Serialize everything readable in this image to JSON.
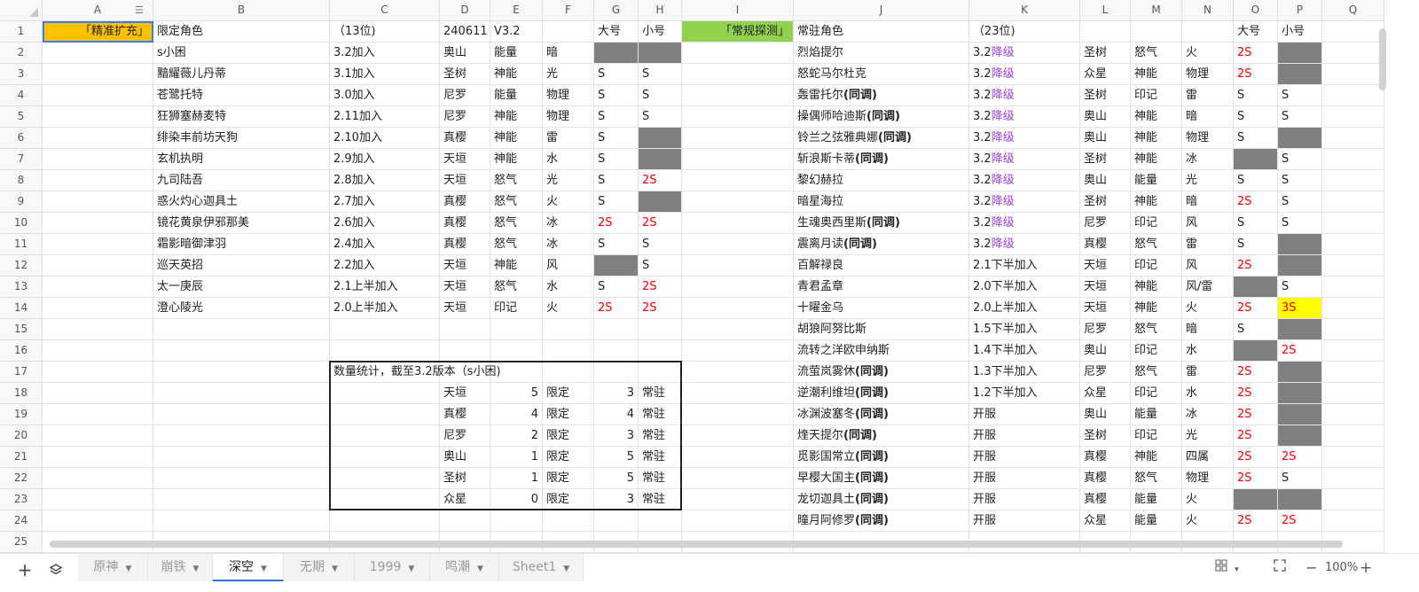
{
  "columns": [
    "A",
    "B",
    "C",
    "D",
    "E",
    "F",
    "G",
    "H",
    "I",
    "J",
    "K",
    "L",
    "M",
    "N",
    "O",
    "P",
    "Q"
  ],
  "row_count": 25,
  "selected_cell": "A1",
  "colors": {
    "orange": "#ffc000",
    "green": "#92d050",
    "gray": "#808080",
    "red": "#ff0000",
    "purple": "#a040f0",
    "yellow": "#ffff00",
    "accent": "#2f6ee8"
  },
  "cells": {
    "A1": "「精准扩充」",
    "B1": "限定角色",
    "C1": "（13位)",
    "D1": "240611",
    "E1": "V3.2",
    "G1": "大号",
    "H1": "小号",
    "I1": "「常规探测」",
    "J1": "常驻角色",
    "K1": "（23位)",
    "O1": "大号",
    "P1": "小号",
    "B2": "s小困",
    "C2": "3.2加入",
    "D2": "奥山",
    "E2": "能量",
    "F2": "暗",
    "B3": "黯耀薇儿丹蒂",
    "C3": "3.1加入",
    "D3": "圣树",
    "E3": "神能",
    "F3": "光",
    "G3": "S",
    "H3": "S",
    "B4": "苍鹭托特",
    "C4": "3.0加入",
    "D4": "尼罗",
    "E4": "能量",
    "F4": "物理",
    "G4": "S",
    "H4": "S",
    "B5": "狂狮塞赫麦特",
    "C5": "2.11加入",
    "D5": "尼罗",
    "E5": "神能",
    "F5": "物理",
    "G5": "S",
    "H5": "S",
    "B6": "绯染丰前坊天狗",
    "C6": "2.10加入",
    "D6": "真樱",
    "E6": "神能",
    "F6": "雷",
    "G6": "S",
    "B7": "玄机执明",
    "C7": "2.9加入",
    "D7": "天垣",
    "E7": "神能",
    "F7": "水",
    "G7": "S",
    "B8": "九司陆吾",
    "C8": "2.8加入",
    "D8": "天垣",
    "E8": "怒气",
    "F8": "光",
    "G8": "S",
    "H8": "2S",
    "B9": "惑火灼心迦具土",
    "C9": "2.7加入",
    "D9": "真樱",
    "E9": "怒气",
    "F9": "火",
    "G9": "S",
    "B10": "镜花黄泉伊邪那美",
    "C10": "2.6加入",
    "D10": "真樱",
    "E10": "怒气",
    "F10": "冰",
    "G10": "2S",
    "H10": "2S",
    "B11": "霜影暗御津羽",
    "C11": "2.4加入",
    "D11": "真樱",
    "E11": "怒气",
    "F11": "冰",
    "G11": "S",
    "H11": "S",
    "B12": "巡天英招",
    "C12": "2.2加入",
    "D12": "天垣",
    "E12": "神能",
    "F12": "风",
    "H12": "S",
    "B13": "太一庚辰",
    "C13": "2.1上半加入",
    "D13": "天垣",
    "E13": "怒气",
    "F13": "水",
    "G13": "S",
    "H13": "2S",
    "B14": "澄心陵光",
    "C14": "2.0上半加入",
    "D14": "天垣",
    "E14": "印记",
    "F14": "火",
    "G14": "2S",
    "H14": "2S",
    "J2": "烈焰提尔",
    "K2": [
      "3.2",
      "降级"
    ],
    "L2": "圣树",
    "M2": "怒气",
    "N2": "火",
    "O2": "2S",
    "J3": "怒蛇马尔杜克",
    "K3": [
      "3.2",
      "降级"
    ],
    "L3": "众星",
    "M3": "神能",
    "N3": "物理",
    "O3": "2S",
    "J4": [
      "轰雷托尔",
      "(同调)"
    ],
    "K4": [
      "3.2",
      "降级"
    ],
    "L4": "圣树",
    "M4": "印记",
    "N4": "雷",
    "O4": "S",
    "P4": "S",
    "J5": [
      "操偶师哈迪斯",
      "(同调)"
    ],
    "K5": [
      "3.2",
      "降级"
    ],
    "L5": "奥山",
    "M5": "神能",
    "N5": "暗",
    "O5": "S",
    "P5": "S",
    "J6": [
      "铃兰之弦雅典娜",
      "(同调)"
    ],
    "K6": [
      "3.2",
      "降级"
    ],
    "L6": "奥山",
    "M6": "神能",
    "N6": "物理",
    "O6": "S",
    "J7": [
      "斩浪斯卡蒂",
      "(同调)"
    ],
    "K7": [
      "3.2",
      "降级"
    ],
    "L7": "圣树",
    "M7": "神能",
    "N7": "冰",
    "P7": "S",
    "J8": "黎幻赫拉",
    "K8": [
      "3.2",
      "降级"
    ],
    "L8": "奥山",
    "M8": "能量",
    "N8": "光",
    "O8": "S",
    "P8": "S",
    "J9": "暗星海拉",
    "K9": [
      "3.2",
      "降级"
    ],
    "L9": "圣树",
    "M9": "神能",
    "N9": "暗",
    "O9": "2S",
    "P9": "S",
    "J10": [
      "生魂奥西里斯",
      "(同调)"
    ],
    "K10": [
      "3.2",
      "降级"
    ],
    "L10": "尼罗",
    "M10": "印记",
    "N10": "风",
    "O10": "S",
    "P10": "S",
    "J11": [
      "震离月读",
      "(同调)"
    ],
    "K11": [
      "3.2",
      "降级"
    ],
    "L11": "真樱",
    "M11": "怒气",
    "N11": "雷",
    "O11": "S",
    "J12": "百解禄良",
    "K12": "2.1下半加入",
    "L12": "天垣",
    "M12": "印记",
    "N12": "风",
    "O12": "2S",
    "J13": "青君孟章",
    "K13": "2.0下半加入",
    "L13": "天垣",
    "M13": "神能",
    "N13": "风/雷",
    "P13": "S",
    "J14": "十曜金乌",
    "K14": "2.0上半加入",
    "L14": "天垣",
    "M14": "神能",
    "N14": "火",
    "O14": "2S",
    "P14": "3S",
    "J15": "胡狼阿努比斯",
    "K15": "1.5下半加入",
    "L15": "尼罗",
    "M15": "怒气",
    "N15": "暗",
    "O15": "S",
    "J16": "流转之洋欧申纳斯",
    "K16": "1.4下半加入",
    "L16": "奥山",
    "M16": "印记",
    "N16": "水",
    "P16": "2S",
    "J17": [
      "流萤岚雾休",
      "(同调)"
    ],
    "K17": "1.3下半加入",
    "L17": "尼罗",
    "M17": "怒气",
    "N17": "雷",
    "O17": "2S",
    "J18": [
      "逆潮利维坦",
      "(同调)"
    ],
    "K18": "1.2下半加入",
    "L18": "众星",
    "M18": "印记",
    "N18": "水",
    "O18": "2S",
    "J19": [
      "冰渊波塞冬",
      "(同调)"
    ],
    "K19": "开服",
    "L19": "奥山",
    "M19": "能量",
    "N19": "冰",
    "O19": "2S",
    "J20": [
      "煃天提尔",
      "(同调)"
    ],
    "K20": "开服",
    "L20": "圣树",
    "M20": "印记",
    "N20": "光",
    "O20": "2S",
    "J21": [
      "觅影国常立",
      "(同调)"
    ],
    "K21": "开服",
    "L21": "真樱",
    "M21": "神能",
    "N21": "四属",
    "O21": "2S",
    "P21": "2S",
    "J22": [
      "早樱大国主",
      "(同调)"
    ],
    "K22": "开服",
    "L22": "真樱",
    "M22": "怒气",
    "N22": "物理",
    "O22": "2S",
    "P22": "S",
    "J23": [
      "龙切迦具土",
      "(同调)"
    ],
    "K23": "开服",
    "L23": "真樱",
    "M23": "能量",
    "N23": "火",
    "J24": [
      "曈月阿修罗",
      "(同调)"
    ],
    "K24": "开服",
    "L24": "众星",
    "M24": "能量",
    "N24": "火",
    "O24": "2S",
    "P24": "2S",
    "C17": "数量统计，截至3.2版本（s小困)",
    "D18": "天垣",
    "E18": "5",
    "F18": "限定",
    "G18": "3",
    "H18": "常驻",
    "D19": "真樱",
    "E19": "4",
    "F19": "限定",
    "G19": "4",
    "H19": "常驻",
    "D20": "尼罗",
    "E20": "2",
    "F20": "限定",
    "G20": "3",
    "H20": "常驻",
    "D21": "奥山",
    "E21": "1",
    "F21": "限定",
    "G21": "5",
    "H21": "常驻",
    "D22": "圣树",
    "E22": "1",
    "F22": "限定",
    "G22": "5",
    "H22": "常驻",
    "D23": "众星",
    "E23": "0",
    "F23": "限定",
    "G23": "3",
    "H23": "常驻"
  },
  "cell_fills": {
    "A1": "orange",
    "I1": "green",
    "G2": "gray",
    "H2": "gray",
    "H6": "gray",
    "H7": "gray",
    "H9": "gray",
    "G12": "gray",
    "P2": "gray",
    "P3": "gray",
    "P6": "gray",
    "O7": "gray",
    "P11": "gray",
    "P12": "gray",
    "O13": "gray",
    "P14": "yellow",
    "P15": "gray",
    "O16": "gray",
    "P17": "gray",
    "P18": "gray",
    "P19": "gray",
    "P20": "gray",
    "O23": "gray",
    "P23": "gray"
  },
  "stats_box_range": "C17:H23",
  "sheet_tabs": [
    {
      "label": "原神",
      "active": false
    },
    {
      "label": "崩铁",
      "active": false
    },
    {
      "label": "深空",
      "active": true
    },
    {
      "label": "无期",
      "active": false
    },
    {
      "label": "1999",
      "active": false
    },
    {
      "label": "鸣潮",
      "active": false
    },
    {
      "label": "Sheet1",
      "active": false
    }
  ],
  "toolbar": {
    "add": "+",
    "zoom_minus": "−",
    "zoom_level": "100%",
    "zoom_plus": "+",
    "dropdown": "▾"
  },
  "icons": {
    "add": "plus-icon",
    "layers": "layers-icon",
    "grid": "grid-view-icon",
    "fullscreen": "fullscreen-icon",
    "filter": "filter-icon"
  }
}
